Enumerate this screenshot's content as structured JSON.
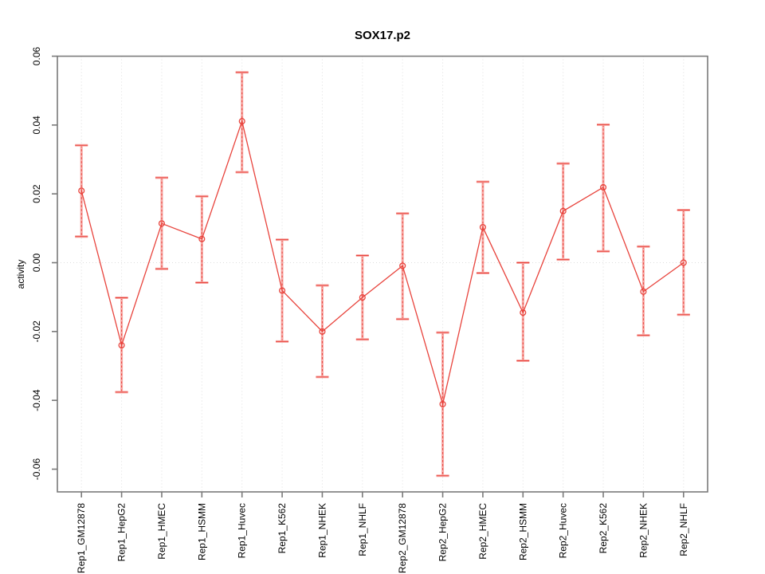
{
  "chart_data": {
    "type": "line",
    "title": "SOX17.p2",
    "xlabel": "",
    "ylabel": "activity",
    "categories": [
      "Rep1_GM12878",
      "Rep1_HepG2",
      "Rep1_HMEC",
      "Rep1_HSMM",
      "Rep1_Huvec",
      "Rep1_K562",
      "Rep1_NHEK",
      "Rep1_NHLF",
      "Rep2_GM12878",
      "Rep2_HepG2",
      "Rep2_HMEC",
      "Rep2_HSMM",
      "Rep2_Huvec",
      "Rep2_K562",
      "Rep2_NHEK",
      "Rep2_NHLF"
    ],
    "series": [
      {
        "name": "activity",
        "values": [
          0.0209,
          -0.024,
          0.0114,
          0.0069,
          0.0411,
          -0.0081,
          -0.02,
          -0.0101,
          -0.0009,
          -0.0411,
          0.0103,
          -0.0145,
          0.015,
          0.0219,
          -0.0084,
          0.0
        ],
        "ci_low": [
          0.0076,
          -0.0376,
          -0.0018,
          -0.0058,
          0.0263,
          -0.0229,
          -0.0332,
          -0.0223,
          -0.0164,
          -0.0619,
          -0.003,
          -0.0285,
          0.0009,
          0.0033,
          -0.0211,
          -0.0151
        ],
        "ci_high": [
          0.0341,
          -0.0102,
          0.0247,
          0.0193,
          0.0553,
          0.0067,
          -0.0066,
          0.0021,
          0.0143,
          -0.0203,
          0.0235,
          0.0,
          0.0288,
          0.0401,
          0.0047,
          0.0153
        ]
      }
    ],
    "ylim": [
      -0.0666,
      0.06
    ],
    "yticks": [
      -0.06,
      -0.04,
      -0.02,
      0,
      0.02,
      0.04,
      0.06
    ],
    "ytick_labels": [
      "-0.06",
      "-0.04",
      "-0.02",
      "0.00",
      "0.02",
      "0.04",
      "0.06"
    ],
    "grid": {
      "vertical_per_category": true,
      "zero_line": true
    },
    "legend_position": "none",
    "marker": "open-circle",
    "colors": {
      "line": "#e8433c",
      "error_bar_fill": "#f7a8a4",
      "error_bar_dash": "#e8433c",
      "box": "#7a7a7a",
      "grid": "#dedede",
      "text": "#000000",
      "background": "#ffffff"
    }
  }
}
